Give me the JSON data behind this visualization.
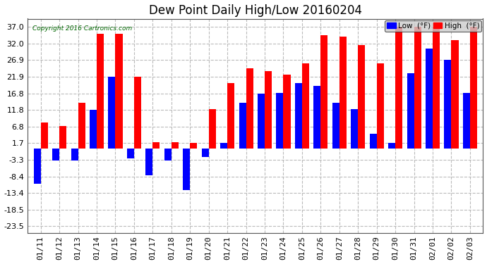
{
  "title": "Dew Point Daily High/Low 20160204",
  "copyright": "Copyright 2016 Cartronics.com",
  "dates": [
    "01/11",
    "01/12",
    "01/13",
    "01/14",
    "01/15",
    "01/16",
    "01/17",
    "01/18",
    "01/19",
    "01/20",
    "01/21",
    "01/22",
    "01/23",
    "01/24",
    "01/25",
    "01/26",
    "01/27",
    "01/28",
    "01/29",
    "01/30",
    "01/31",
    "02/01",
    "02/02",
    "02/03"
  ],
  "high_values": [
    8.0,
    7.0,
    14.0,
    35.0,
    35.0,
    21.9,
    2.0,
    2.0,
    1.7,
    12.0,
    20.0,
    24.5,
    23.5,
    22.5,
    26.0,
    34.5,
    34.0,
    31.5,
    26.0,
    37.0,
    37.0,
    37.0,
    33.0,
    37.0
  ],
  "low_values": [
    -10.5,
    -3.5,
    -3.5,
    11.8,
    21.9,
    -3.0,
    -8.0,
    -3.5,
    -12.5,
    -2.5,
    1.7,
    14.0,
    16.8,
    17.0,
    20.0,
    19.0,
    14.0,
    12.0,
    4.5,
    1.7,
    23.0,
    30.5,
    26.9,
    17.0
  ],
  "high_color": "#ff0000",
  "low_color": "#0000ff",
  "bg_color": "#ffffff",
  "grid_color": "#bbbbbb",
  "yticks": [
    -23.5,
    -18.5,
    -13.4,
    -8.4,
    -3.3,
    1.7,
    6.8,
    11.8,
    16.8,
    21.9,
    26.9,
    32.0,
    37.0
  ],
  "ylim": [
    -25.5,
    39.5
  ],
  "title_fontsize": 12,
  "tick_fontsize": 8,
  "bar_width": 0.38
}
